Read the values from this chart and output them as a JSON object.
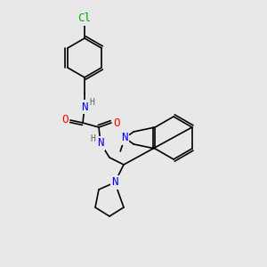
{
  "background_color": "#e8e8e8",
  "atom_colors": {
    "C": "#000000",
    "N": "#0000ff",
    "O": "#ff0000",
    "Cl": "#00aa00",
    "H": "#808080"
  },
  "bond_color": "#000000",
  "font_size_atoms": 9,
  "font_size_small": 7
}
